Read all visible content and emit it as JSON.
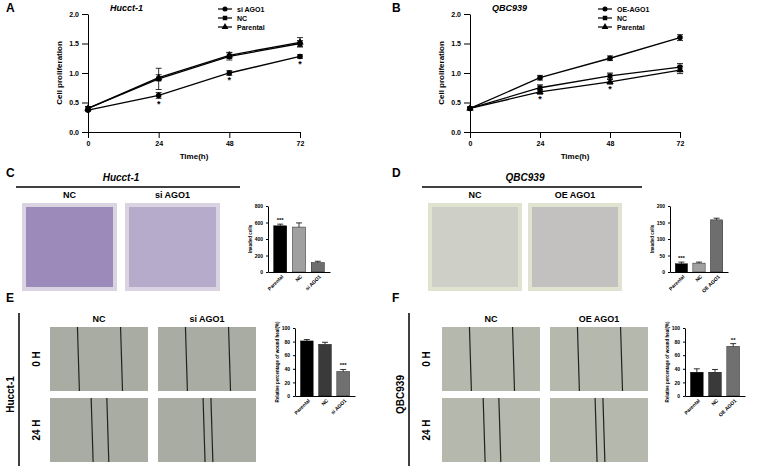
{
  "chart_data": [
    {
      "type": "line",
      "panel": "A",
      "title": "Hucct-1",
      "x": [
        0,
        24,
        48,
        72
      ],
      "xlim": [
        0,
        72
      ],
      "xticks": [
        0,
        24,
        48,
        72
      ],
      "ylim": [
        0,
        2
      ],
      "yticks": [
        {
          "value": 0,
          "label": "0.0"
        },
        {
          "value": 0.5,
          "label": "0.5"
        },
        {
          "value": 1,
          "label": "1.0"
        },
        {
          "value": 1.5,
          "label": "1.5"
        },
        {
          "value": 2,
          "label": "2.0"
        }
      ],
      "x_label": "Time(h)",
      "y_label": "Cell proliferation",
      "legend": "top-right",
      "series": [
        {
          "name": "si AGO1",
          "color": "#000000",
          "marker": "circle",
          "values": [
            0.37,
            0.62,
            1.0,
            1.28
          ],
          "errors": [
            0.02,
            0.05,
            0.04,
            0.03
          ]
        },
        {
          "name": "NC",
          "color": "#000000",
          "marker": "square",
          "values": [
            0.4,
            0.9,
            1.28,
            1.5
          ],
          "errors": [
            0.03,
            0.18,
            0.06,
            0.05
          ]
        },
        {
          "name": "Parental",
          "color": "#000000",
          "marker": "triangle",
          "values": [
            0.4,
            0.92,
            1.3,
            1.52
          ],
          "errors": [
            0.03,
            0.05,
            0.05,
            0.08
          ]
        }
      ],
      "annotations": [
        {
          "text": "*",
          "x": 24,
          "y": 0.5
        },
        {
          "text": "*",
          "x": 48,
          "y": 0.89
        },
        {
          "text": "*",
          "x": 72,
          "y": 1.17
        }
      ]
    },
    {
      "type": "line",
      "panel": "B",
      "title": "QBC939",
      "x": [
        0,
        24,
        48,
        72
      ],
      "xlim": [
        0,
        72
      ],
      "xticks": [
        0,
        24,
        48,
        72
      ],
      "ylim": [
        0,
        2
      ],
      "yticks": [
        {
          "value": 0,
          "label": "0.0"
        },
        {
          "value": 0.5,
          "label": "0.5"
        },
        {
          "value": 1,
          "label": "1.0"
        },
        {
          "value": 1.5,
          "label": "1.5"
        },
        {
          "value": 2,
          "label": "2.0"
        }
      ],
      "x_label": "Time(h)",
      "y_label": "Cell proliferation",
      "legend": "top-right",
      "series": [
        {
          "name": "OE-AGO1",
          "color": "#000000",
          "marker": "circle",
          "values": [
            0.4,
            0.92,
            1.25,
            1.6
          ],
          "errors": [
            0.02,
            0.04,
            0.04,
            0.05
          ]
        },
        {
          "name": "NC",
          "color": "#000000",
          "marker": "square",
          "values": [
            0.4,
            0.75,
            0.95,
            1.1
          ],
          "errors": [
            0.02,
            0.05,
            0.05,
            0.06
          ]
        },
        {
          "name": "Parental",
          "color": "#000000",
          "marker": "triangle",
          "values": [
            0.4,
            0.68,
            0.85,
            1.05
          ],
          "errors": [
            0.02,
            0.04,
            0.04,
            0.06
          ]
        }
      ],
      "annotations": [
        {
          "text": "*",
          "x": 24,
          "y": 0.58
        },
        {
          "text": "*",
          "x": 48,
          "y": 0.74
        }
      ]
    },
    {
      "type": "bar",
      "panel": "C",
      "title": "Hucct-1",
      "image_labels": [
        "NC",
        "si AGO1"
      ],
      "categories": [
        "Parental",
        "NC",
        "si AGO1"
      ],
      "values": [
        560,
        545,
        115
      ],
      "errors": [
        20,
        50,
        15
      ],
      "colors": [
        "#000000",
        "#a0a0a0",
        "#6e6e6e"
      ],
      "ylim": [
        0,
        800
      ],
      "yticks": [
        0,
        200,
        400,
        600,
        800
      ],
      "y_label": "Invaded cells",
      "annotations": [
        {
          "text": "***",
          "category": "Parental"
        }
      ]
    },
    {
      "type": "bar",
      "panel": "D",
      "title": "QBC939",
      "image_labels": [
        "NC",
        "OE AGO1"
      ],
      "categories": [
        "Parental",
        "NC",
        "OE AGO1"
      ],
      "values": [
        25,
        27,
        158
      ],
      "errors": [
        5,
        3,
        5
      ],
      "colors": [
        "#000000",
        "#a0a0a0",
        "#6e6e6e"
      ],
      "ylim": [
        0,
        200
      ],
      "yticks": [
        0,
        50,
        100,
        150,
        200
      ],
      "y_label": "Invaded cells",
      "annotations": [
        {
          "text": "***",
          "category": "Parental"
        }
      ]
    },
    {
      "type": "bar",
      "panel": "E",
      "title": "Hucct-1",
      "image_labels": [
        "NC",
        "si AGO1"
      ],
      "row_labels": [
        "0 H",
        "24 H"
      ],
      "categories": [
        "Parental",
        "NC",
        "si AGO1"
      ],
      "values": [
        81,
        76,
        36
      ],
      "errors": [
        2,
        3,
        3
      ],
      "colors": [
        "#000000",
        "#3a3a3a",
        "#707070"
      ],
      "ylim": [
        0,
        100
      ],
      "yticks": [
        0,
        20,
        40,
        60,
        80,
        100
      ],
      "y_label": "Relative percentage of wound heal(%)",
      "annotations": [
        {
          "text": "***",
          "category": "si AGO1"
        }
      ]
    },
    {
      "type": "bar",
      "panel": "F",
      "title": "QBC939",
      "image_labels": [
        "NC",
        "OE AGO1"
      ],
      "row_labels": [
        "0 H",
        "24 H"
      ],
      "categories": [
        "Parental",
        "NC",
        "OE AGO1"
      ],
      "values": [
        35,
        35,
        73
      ],
      "errors": [
        5,
        4,
        4
      ],
      "colors": [
        "#000000",
        "#3a3a3a",
        "#707070"
      ],
      "ylim": [
        0,
        100
      ],
      "yticks": [
        0,
        20,
        40,
        60,
        80,
        100
      ],
      "y_label": "Relative percentage of wound heal(%)",
      "annotations": [
        {
          "text": "**",
          "category": "OE AGO1"
        }
      ]
    }
  ]
}
